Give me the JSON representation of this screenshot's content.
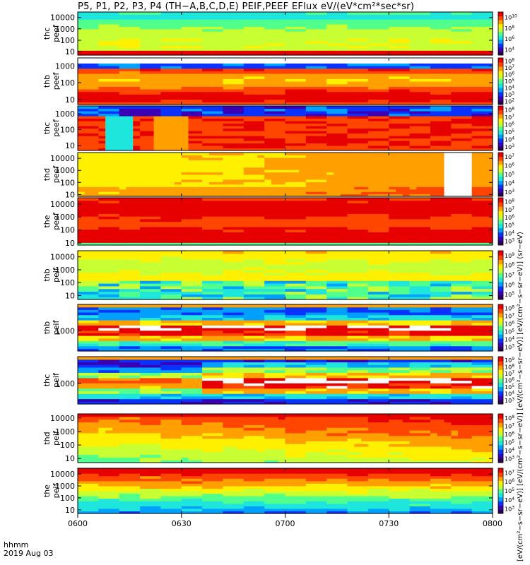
{
  "title": "P5, P1, P2, P3, P4 (TH−A,B,C,D,E) PEIF,PEEF EFlux eV/(eV*cm²*sec*sr)",
  "colorbar_label": "[eV/(cm²−s−sr−eV)] [eV/(cm²−s−sr−eV)] [eV/(cm²−s−sr−eV)] [eV/(cm²−s−sr−eV)] (sr−eV)",
  "time_axis_label": [
    "hhmm",
    "2019 Aug 03"
  ],
  "colors": {
    "colormap": [
      "#2a0052",
      "#3c00b4",
      "#0a32ff",
      "#00a0ff",
      "#1ee6dc",
      "#50ff8c",
      "#c8ff32",
      "#fff000",
      "#ffa000",
      "#ff4600",
      "#e60000",
      "#000000"
    ]
  },
  "chart_data": [
    {
      "type": "heatmap",
      "ylabel": "thc peef",
      "x_ticks": [
        "0600",
        "0630",
        "0700",
        "0730",
        "0800"
      ],
      "y_ticks": [
        "10",
        "100",
        "1000",
        "10000"
      ],
      "y_scale": "log",
      "colorbar_ticks": [
        "10^4",
        "10^6",
        "10^8",
        "10^10"
      ]
    },
    {
      "type": "heatmap",
      "ylabel": "thb peef",
      "x_ticks": [
        "0600",
        "0630",
        "0700",
        "0730",
        "0800"
      ],
      "y_ticks": [
        "10",
        "100",
        "1000"
      ],
      "y_scale": "log",
      "colorbar_ticks": [
        "10^2",
        "10^3",
        "10^4",
        "10^5",
        "10^6",
        "10^7",
        "10^8"
      ]
    },
    {
      "type": "heatmap",
      "ylabel": "thc peef",
      "x_ticks": [
        "0600",
        "0630",
        "0700",
        "0730",
        "0800"
      ],
      "y_ticks": [
        "10",
        "100",
        "1000"
      ],
      "y_scale": "log",
      "colorbar_ticks": [
        "10^3",
        "10^4",
        "10^5",
        "10^6",
        "10^7",
        "10^8"
      ]
    },
    {
      "type": "heatmap",
      "ylabel": "thd peef",
      "x_ticks": [
        "0600",
        "0630",
        "0700",
        "0730",
        "0800"
      ],
      "y_ticks": [
        "10",
        "100",
        "1000",
        "10000"
      ],
      "y_scale": "log",
      "colorbar_ticks": [
        "10^3",
        "10^4",
        "10^5",
        "10^6",
        "10^7"
      ]
    },
    {
      "type": "heatmap",
      "ylabel": "the peef",
      "x_ticks": [
        "0600",
        "0630",
        "0700",
        "0730",
        "0800"
      ],
      "y_ticks": [
        "10",
        "100",
        "1000",
        "10000"
      ],
      "y_scale": "log",
      "colorbar_ticks": [
        "10^3",
        "10^4",
        "10^5",
        "10^6",
        "10^7",
        "10^8"
      ]
    },
    {
      "type": "heatmap",
      "ylabel": "thb peif",
      "x_ticks": [
        "0600",
        "0630",
        "0700",
        "0730",
        "0800"
      ],
      "y_ticks": [
        "10",
        "100",
        "1000",
        "10000"
      ],
      "y_scale": "log",
      "colorbar_ticks": [
        "10^5",
        "10^6",
        "10^7",
        "10^8",
        "10^9"
      ]
    },
    {
      "type": "heatmap",
      "ylabel": "thb peif",
      "x_ticks": [
        "0600",
        "0630",
        "0700",
        "0730",
        "0800"
      ],
      "y_ticks": [
        "1000"
      ],
      "y_scale": "log",
      "colorbar_ticks": [
        "10^3",
        "10^4",
        "10^5",
        "10^6",
        "10^7",
        "10^8"
      ]
    },
    {
      "type": "heatmap",
      "ylabel": "thc peif",
      "x_ticks": [
        "0600",
        "0630",
        "0700",
        "0730",
        "0800"
      ],
      "y_ticks": [
        "1000"
      ],
      "y_scale": "log",
      "colorbar_ticks": [
        "10^3",
        "10^4",
        "10^5",
        "10^6",
        "10^7",
        "10^8",
        "10^9"
      ]
    },
    {
      "type": "heatmap",
      "ylabel": "thd peif",
      "x_ticks": [
        "0600",
        "0630",
        "0700",
        "0730",
        "0800"
      ],
      "y_ticks": [
        "10",
        "100",
        "1000",
        "10000"
      ],
      "y_scale": "log",
      "colorbar_ticks": [
        "10^3",
        "10^4",
        "10^5",
        "10^6",
        "10^7",
        "10^8"
      ]
    },
    {
      "type": "heatmap",
      "ylabel": "the peif",
      "x_ticks": [
        "0600",
        "0630",
        "0700",
        "0730",
        "0800"
      ],
      "y_ticks": [
        "10",
        "100",
        "1000",
        "10000"
      ],
      "y_scale": "log",
      "colorbar_ticks": [
        "10^3",
        "10^4",
        "10^5",
        "10^6",
        "10^7"
      ]
    }
  ]
}
